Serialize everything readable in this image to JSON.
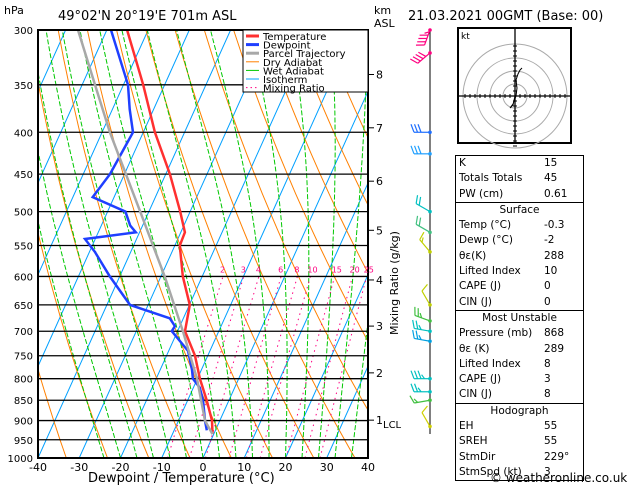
{
  "header": {
    "location": "49°02'N  20°19'E  701m  ASL",
    "datetime": "21.03.2021  00GMT  (Base: 00)",
    "left_unit": "hPa",
    "right_unit_1": "km",
    "right_unit_2": "ASL",
    "copyright": "© weatheronline.co.uk"
  },
  "colors": {
    "temperature": "#ff3030",
    "dewpoint": "#1f3fff",
    "parcel": "#a8a8a8",
    "dry_adiabat": "#ff8000",
    "wet_adiabat": "#00c800",
    "isotherm": "#00a0ff",
    "mixing_ratio": "#ff0080"
  },
  "chart_data": {
    "type": "line",
    "title": "Skew-T log-P sounding",
    "xlabel": "Dewpoint / Temperature (°C)",
    "ylabel": "hPa",
    "y2label": "Mixing Ratio (g/kg)",
    "xlim": [
      -40,
      40
    ],
    "ylim": [
      1000,
      300
    ],
    "x_ticks": [
      "-40",
      "-30",
      "-20",
      "-10",
      "0",
      "10",
      "20",
      "30",
      "40"
    ],
    "x_tick_values": [
      -40,
      -30,
      -20,
      -10,
      0,
      10,
      20,
      30,
      40
    ],
    "pressure_ticks": [
      300,
      350,
      400,
      450,
      500,
      550,
      600,
      650,
      700,
      750,
      800,
      850,
      900,
      950,
      1000
    ],
    "km_ticks": [
      {
        "km": "8",
        "p": 340
      },
      {
        "km": "7",
        "p": 395
      },
      {
        "km": "6",
        "p": 459
      },
      {
        "km": "5",
        "p": 527
      },
      {
        "km": "4",
        "p": 606
      },
      {
        "km": "3",
        "p": 690
      },
      {
        "km": "2",
        "p": 787
      },
      {
        "km": "1",
        "p": 899
      }
    ],
    "lcl_label": "LCL",
    "lcl_p": 899,
    "mixing_ratio_labels": [
      2,
      3,
      4,
      6,
      8,
      10,
      15,
      20,
      25
    ],
    "legend": [
      "Temperature",
      "Dewpoint",
      "Parcel Trajectory",
      "Dry Adiabat",
      "Wet Adiabat",
      "Isotherm",
      "Mixing Ratio"
    ],
    "legend_position": "top-right",
    "series": [
      {
        "name": "Temperature",
        "points": [
          [
            935,
            -0.3
          ],
          [
            900,
            -1.9
          ],
          [
            850,
            -5.4
          ],
          [
            800,
            -9.4
          ],
          [
            750,
            -13.1
          ],
          [
            700,
            -18.2
          ],
          [
            650,
            -19.9
          ],
          [
            600,
            -24.7
          ],
          [
            550,
            -28.8
          ],
          [
            530,
            -29
          ],
          [
            500,
            -32.4
          ],
          [
            450,
            -39
          ],
          [
            400,
            -47.2
          ],
          [
            350,
            -55.2
          ],
          [
            300,
            -65.1
          ]
        ]
      },
      {
        "name": "Dewpoint",
        "points": [
          [
            925,
            -2.1
          ],
          [
            900,
            -3.6
          ],
          [
            850,
            -6.3
          ],
          [
            820,
            -8.5
          ],
          [
            800,
            -11.1
          ],
          [
            780,
            -12.3
          ],
          [
            740,
            -15.3
          ],
          [
            700,
            -21.4
          ],
          [
            690,
            -21.2
          ],
          [
            675,
            -23.3
          ],
          [
            650,
            -34.4
          ],
          [
            600,
            -42.4
          ],
          [
            560,
            -48.7
          ],
          [
            540,
            -52.5
          ],
          [
            530,
            -40.9
          ],
          [
            520,
            -43
          ],
          [
            500,
            -45.7
          ],
          [
            480,
            -55.2
          ],
          [
            450,
            -53.5
          ],
          [
            400,
            -52.5
          ],
          [
            375,
            -55.8
          ],
          [
            350,
            -58.9
          ],
          [
            300,
            -69
          ]
        ]
      },
      {
        "name": "Parcel Trajectory",
        "points": [
          [
            935,
            -0.3
          ],
          [
            900,
            -3.6
          ],
          [
            800,
            -10.1
          ],
          [
            700,
            -18.7
          ],
          [
            600,
            -29.1
          ],
          [
            500,
            -42.1
          ],
          [
            400,
            -58.1
          ],
          [
            350,
            -66.9
          ],
          [
            300,
            -77
          ]
        ]
      }
    ],
    "winds": [
      {
        "p": 300,
        "dir": 200,
        "spd": 45,
        "color": "#ff0080"
      },
      {
        "p": 320,
        "dir": 230,
        "spd": 40,
        "color": "#ff0080"
      },
      {
        "p": 400,
        "dir": 270,
        "spd": 30,
        "color": "#1f6fff"
      },
      {
        "p": 425,
        "dir": 270,
        "spd": 30,
        "color": "#1f9fff"
      },
      {
        "p": 500,
        "dir": 300,
        "spd": 20,
        "color": "#00c0c0"
      },
      {
        "p": 530,
        "dir": 300,
        "spd": 20,
        "color": "#40c080"
      },
      {
        "p": 560,
        "dir": 320,
        "spd": 15,
        "color": "#c0d000"
      },
      {
        "p": 650,
        "dir": 330,
        "spd": 10,
        "color": "#c0d000"
      },
      {
        "p": 680,
        "dir": 290,
        "spd": 25,
        "color": "#40c040"
      },
      {
        "p": 700,
        "dir": 280,
        "spd": 25,
        "color": "#00c0c0"
      },
      {
        "p": 720,
        "dir": 280,
        "spd": 25,
        "color": "#00a0e0"
      },
      {
        "p": 800,
        "dir": 270,
        "spd": 35,
        "color": "#00c0c0"
      },
      {
        "p": 830,
        "dir": 270,
        "spd": 25,
        "color": "#00c0c0"
      },
      {
        "p": 850,
        "dir": 260,
        "spd": 15,
        "color": "#40c040"
      },
      {
        "p": 915,
        "dir": 330,
        "spd": 10,
        "color": "#d0d000"
      }
    ],
    "hodograph": {
      "unit": "kt"
    }
  },
  "indices": {
    "top": [
      {
        "k": "K",
        "v": "15"
      },
      {
        "k": "Totals Totals",
        "v": "45"
      },
      {
        "k": "PW (cm)",
        "v": "0.61"
      }
    ],
    "surface": {
      "title": "Surface",
      "rows": [
        {
          "k": "Temp (°C)",
          "v": "-0.3"
        },
        {
          "k": "Dewp (°C)",
          "v": "-2"
        },
        {
          "k": "θε(K)",
          "v": "288"
        },
        {
          "k": "Lifted Index",
          "v": "10"
        },
        {
          "k": "CAPE (J)",
          "v": "0"
        },
        {
          "k": "CIN (J)",
          "v": "0"
        }
      ]
    },
    "most_unstable": {
      "title": "Most Unstable",
      "rows": [
        {
          "k": "Pressure (mb)",
          "v": "868"
        },
        {
          "k": "θε (K)",
          "v": "289"
        },
        {
          "k": "Lifted Index",
          "v": "8"
        },
        {
          "k": "CAPE (J)",
          "v": "3"
        },
        {
          "k": "CIN (J)",
          "v": "8"
        }
      ]
    },
    "hodograph": {
      "title": "Hodograph",
      "rows": [
        {
          "k": "EH",
          "v": "55"
        },
        {
          "k": "SREH",
          "v": "55"
        },
        {
          "k": "StmDir",
          "v": "229°"
        },
        {
          "k": "StmSpd (kt)",
          "v": "3"
        }
      ]
    }
  }
}
